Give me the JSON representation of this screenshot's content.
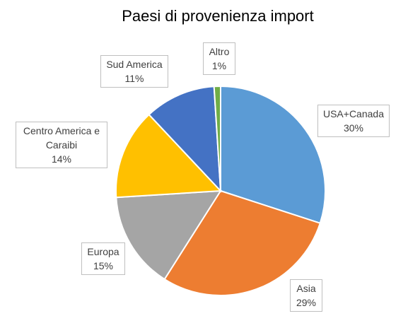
{
  "chart_data": {
    "type": "pie",
    "title": "Paesi di provenienza import",
    "categories": [
      "USA+Canada",
      "Asia",
      "Europa",
      "Centro America e Caraibi",
      "Sud America",
      "Altro"
    ],
    "values": [
      30,
      29,
      15,
      14,
      11,
      1
    ],
    "value_labels": [
      "30%",
      "29%",
      "15%",
      "14%",
      "11%",
      "1%"
    ],
    "colors": [
      "#5b9bd5",
      "#ed7d31",
      "#a5a5a5",
      "#ffc000",
      "#4472c4",
      "#70ad47"
    ]
  }
}
